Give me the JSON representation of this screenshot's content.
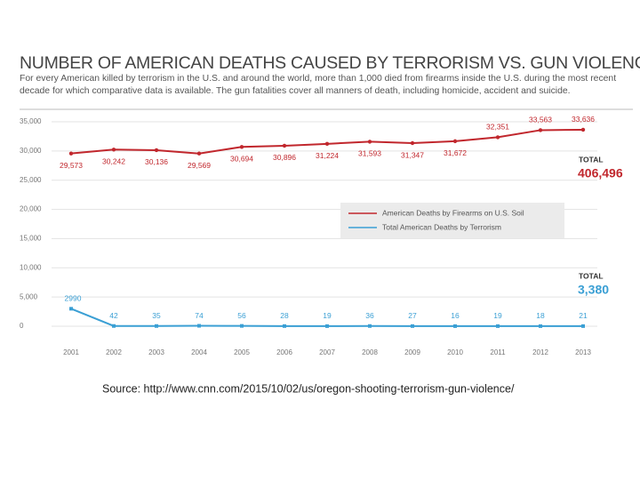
{
  "chart_data": {
    "type": "line",
    "title": "NUMBER OF AMERICAN DEATHS CAUSED BY TERRORISM VS. GUN VIOLENCE",
    "subtitle": "For every American killed by terrorism in the U.S. and around the world, more than 1,000 died from firearms inside the U.S. during the most recent decade for which comparative data is available. The gun fatalities cover all manners of death, including homicide, accident and suicide.",
    "categories": [
      "2001",
      "2002",
      "2003",
      "2004",
      "2005",
      "2006",
      "2007",
      "2008",
      "2009",
      "2010",
      "2011",
      "2012",
      "2013"
    ],
    "series": [
      {
        "name": "American Deaths by Firearms on U.S. Soil",
        "color": "#c1272d",
        "values": [
          29573,
          30242,
          30136,
          29569,
          30694,
          30896,
          31224,
          31593,
          31347,
          31672,
          32351,
          33563,
          33636
        ],
        "value_labels": [
          "29,573",
          "30,242",
          "30,136",
          "29,569",
          "30,694",
          "30,896",
          "31,224",
          "31,593",
          "31,347",
          "31,672",
          "32,351",
          "33,563",
          "33,636"
        ]
      },
      {
        "name": "Total American Deaths by Terrorism",
        "color": "#3a9fd4",
        "values": [
          2990,
          42,
          35,
          74,
          56,
          28,
          19,
          36,
          27,
          16,
          19,
          18,
          21
        ]
      }
    ],
    "ylim": [
      0,
      35000
    ],
    "yticks": [
      0,
      {
        "value": 5000,
        "label": "5,000"
      },
      {
        "value": 10000,
        "label": "10,000"
      },
      {
        "value": 15000,
        "label": "15,000"
      },
      {
        "value": 20000,
        "label": "20,000"
      },
      {
        "value": 25000,
        "label": "25,000"
      },
      {
        "value": 30000,
        "label": "30,000"
      },
      {
        "value": 35000,
        "label": "35,000"
      }
    ],
    "grid": true,
    "annotations": [
      {
        "title": "TOTAL",
        "text": "406,496"
      },
      {
        "title": "TOTAL",
        "text": "3,380"
      }
    ],
    "source": "Source: http://www.cnn.com/2015/10/02/us/oregon-shooting-terrorism-gun-violence/"
  }
}
